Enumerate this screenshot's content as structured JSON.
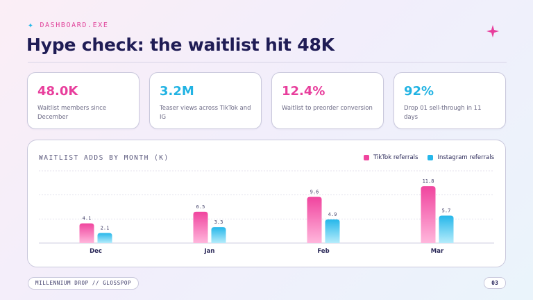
{
  "header": {
    "eyebrow": "DASHBOARD.EXE",
    "title": "Hype check: the waitlist hit 48K"
  },
  "kpis": [
    {
      "value": "48.0K",
      "label": "Waitlist members since December",
      "color": "#e83e9c"
    },
    {
      "value": "3.2M",
      "label": "Teaser views across TikTok and IG",
      "color": "#22b3e3"
    },
    {
      "value": "12.4%",
      "label": "Waitlist to preorder conversion",
      "color": "#e83e9c"
    },
    {
      "value": "92%",
      "label": "Drop 01 sell-through in 11 days",
      "color": "#22b3e3"
    }
  ],
  "chart_data": {
    "type": "bar",
    "title": "WAITLIST ADDS BY MONTH (K)",
    "categories": [
      "Dec",
      "Jan",
      "Feb",
      "Mar"
    ],
    "series": [
      {
        "name": "TikTok referrals",
        "values": [
          4.1,
          6.5,
          9.6,
          11.8
        ],
        "color": "#f0449e",
        "color_light": "#ffb7dc"
      },
      {
        "name": "Instagram referrals",
        "values": [
          2.1,
          3.3,
          4.9,
          5.7
        ],
        "color": "#26b7ea",
        "color_light": "#b5ecfb"
      }
    ],
    "xlabel": "",
    "ylabel": "",
    "ylim": [
      0,
      15
    ],
    "grid": true,
    "legend": "top-right"
  },
  "footer": {
    "pill": "MILLENNIUM DROP // GLOSSPOP",
    "page": "03"
  }
}
